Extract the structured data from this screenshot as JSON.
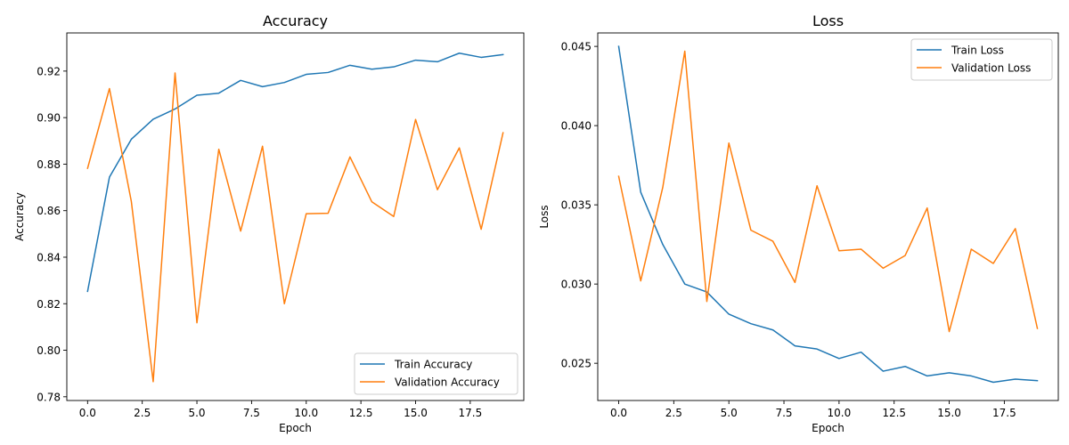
{
  "chart_data": [
    {
      "type": "line",
      "title": "Accuracy",
      "xlabel": "Epoch",
      "ylabel": "Accuracy",
      "xlim": [
        -0.95,
        19.95
      ],
      "ylim": [
        0.7784,
        0.9364
      ],
      "x": [
        0,
        1,
        2,
        3,
        4,
        5,
        6,
        7,
        8,
        9,
        10,
        11,
        12,
        13,
        14,
        15,
        16,
        17,
        18,
        19
      ],
      "xticks": [
        0.0,
        2.5,
        5.0,
        7.5,
        10.0,
        12.5,
        15.0,
        17.5
      ],
      "xtick_labels": [
        "0.0",
        "2.5",
        "5.0",
        "7.5",
        "10.0",
        "12.5",
        "15.0",
        "17.5"
      ],
      "yticks": [
        0.78,
        0.8,
        0.82,
        0.84,
        0.86,
        0.88,
        0.9,
        0.92
      ],
      "ytick_labels": [
        "0.78",
        "0.80",
        "0.82",
        "0.84",
        "0.86",
        "0.88",
        "0.90",
        "0.92"
      ],
      "legend_position": "bottom-right",
      "series": [
        {
          "name": "Train Accuracy",
          "color": "#1f77b4",
          "values": [
            0.8253,
            0.8744,
            0.8907,
            0.8993,
            0.9037,
            0.9096,
            0.9105,
            0.916,
            0.9133,
            0.9151,
            0.9186,
            0.9194,
            0.9225,
            0.9208,
            0.9218,
            0.9247,
            0.924,
            0.9277,
            0.9259,
            0.9271
          ]
        },
        {
          "name": "Validation Accuracy",
          "color": "#ff7f0e",
          "values": [
            0.8782,
            0.9125,
            0.864,
            0.7865,
            0.9192,
            0.8118,
            0.8864,
            0.8512,
            0.8877,
            0.82,
            0.8587,
            0.8589,
            0.8831,
            0.8638,
            0.8575,
            0.8992,
            0.869,
            0.887,
            0.852,
            0.8935
          ]
        }
      ]
    },
    {
      "type": "line",
      "title": "Loss",
      "xlabel": "Epoch",
      "ylabel": "Loss",
      "xlim": [
        -0.95,
        19.95
      ],
      "ylim": [
        0.02265,
        0.04585
      ],
      "x": [
        0,
        1,
        2,
        3,
        4,
        5,
        6,
        7,
        8,
        9,
        10,
        11,
        12,
        13,
        14,
        15,
        16,
        17,
        18,
        19
      ],
      "xticks": [
        0.0,
        2.5,
        5.0,
        7.5,
        10.0,
        12.5,
        15.0,
        17.5
      ],
      "xtick_labels": [
        "0.0",
        "2.5",
        "5.0",
        "7.5",
        "10.0",
        "12.5",
        "15.0",
        "17.5"
      ],
      "yticks": [
        0.025,
        0.03,
        0.035,
        0.04,
        0.045
      ],
      "ytick_labels": [
        "0.025",
        "0.030",
        "0.035",
        "0.040",
        "0.045"
      ],
      "legend_position": "top-right",
      "series": [
        {
          "name": "Train Loss",
          "color": "#1f77b4",
          "values": [
            0.045,
            0.0358,
            0.0325,
            0.03,
            0.0295,
            0.0281,
            0.0275,
            0.0271,
            0.0261,
            0.0259,
            0.0253,
            0.0257,
            0.0245,
            0.0248,
            0.0242,
            0.0244,
            0.0242,
            0.0238,
            0.024,
            0.0239
          ]
        },
        {
          "name": "Validation Loss",
          "color": "#ff7f0e",
          "values": [
            0.0368,
            0.0302,
            0.0361,
            0.0447,
            0.0289,
            0.0389,
            0.0334,
            0.0327,
            0.0301,
            0.0362,
            0.0321,
            0.0322,
            0.031,
            0.0318,
            0.0348,
            0.027,
            0.0322,
            0.0313,
            0.0335,
            0.0272
          ]
        }
      ]
    }
  ]
}
